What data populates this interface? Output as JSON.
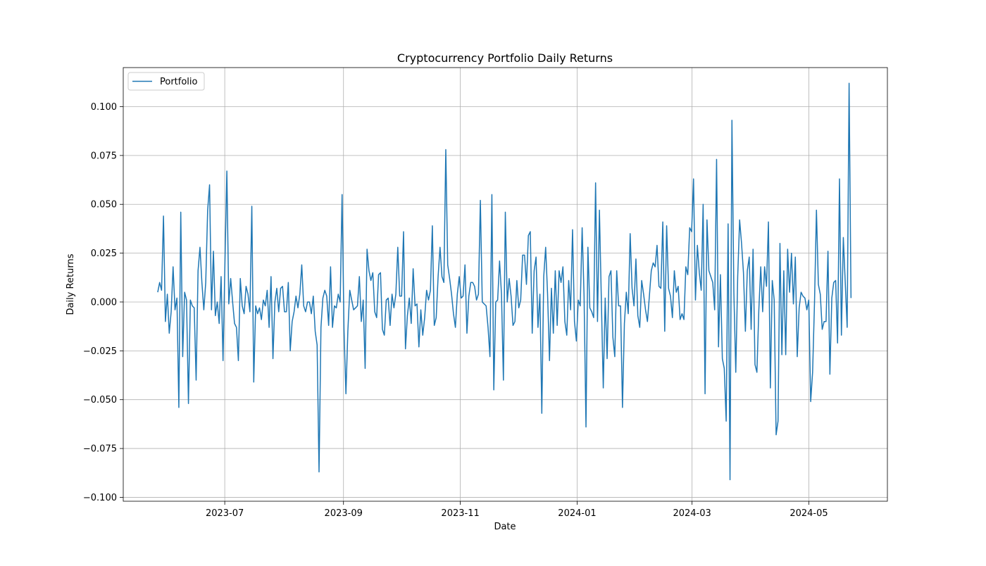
{
  "chart_data": {
    "type": "line",
    "title": "Cryptocurrency Portfolio Daily Returns",
    "xlabel": "Date",
    "ylabel": "Daily Returns",
    "x_start": "2023-05-27",
    "x_end": "2024-05-23",
    "xlim": [
      "2023-05-09",
      "2024-06-11"
    ],
    "ylim": [
      -0.102,
      0.12
    ],
    "x_ticks": [
      {
        "date": "2023-07-01",
        "label": "2023-07"
      },
      {
        "date": "2023-09-01",
        "label": "2023-09"
      },
      {
        "date": "2023-11-01",
        "label": "2023-11"
      },
      {
        "date": "2024-01-01",
        "label": "2024-01"
      },
      {
        "date": "2024-03-01",
        "label": "2024-03"
      },
      {
        "date": "2024-05-01",
        "label": "2024-05"
      }
    ],
    "y_ticks": [
      {
        "value": -0.1,
        "label": "−0.100"
      },
      {
        "value": -0.075,
        "label": "−0.075"
      },
      {
        "value": -0.05,
        "label": "−0.050"
      },
      {
        "value": -0.025,
        "label": "−0.025"
      },
      {
        "value": 0.0,
        "label": "0.000"
      },
      {
        "value": 0.025,
        "label": "0.025"
      },
      {
        "value": 0.05,
        "label": "0.050"
      },
      {
        "value": 0.075,
        "label": "0.075"
      },
      {
        "value": 0.1,
        "label": "0.100"
      }
    ],
    "grid": true,
    "legend_position": "top-left",
    "series": [
      {
        "name": "Portfolio",
        "color": "#1f77b4",
        "values": [
          0.005,
          0.01,
          0.006,
          0.044,
          -0.01,
          0.004,
          -0.016,
          -0.005,
          0.018,
          -0.004,
          0.002,
          -0.054,
          0.046,
          -0.028,
          0.005,
          0.001,
          -0.052,
          0.001,
          -0.002,
          -0.003,
          -0.04,
          0.016,
          0.028,
          0.01,
          -0.004,
          0.01,
          0.047,
          0.06,
          -0.004,
          0.026,
          -0.007,
          0.0,
          -0.011,
          0.013,
          -0.03,
          0.02,
          0.067,
          -0.001,
          0.012,
          0.0,
          -0.011,
          -0.013,
          -0.03,
          0.012,
          -0.002,
          -0.006,
          0.008,
          0.004,
          -0.005,
          0.049,
          -0.041,
          -0.002,
          -0.006,
          -0.003,
          -0.009,
          0.001,
          -0.002,
          0.006,
          -0.013,
          0.013,
          -0.029,
          0.0,
          0.007,
          -0.005,
          0.007,
          0.008,
          -0.005,
          -0.005,
          0.01,
          -0.025,
          -0.01,
          -0.005,
          0.003,
          -0.003,
          0.004,
          0.019,
          -0.002,
          -0.005,
          0.0,
          0.0,
          -0.006,
          0.003,
          -0.015,
          -0.022,
          -0.087,
          -0.013,
          0.002,
          0.006,
          0.003,
          -0.012,
          0.018,
          -0.013,
          -0.002,
          -0.003,
          0.004,
          0.0,
          0.055,
          -0.014,
          -0.047,
          -0.015,
          0.006,
          0.001,
          -0.004,
          -0.003,
          -0.002,
          0.013,
          -0.01,
          0.001,
          -0.034,
          0.027,
          0.016,
          0.011,
          0.015,
          -0.005,
          -0.008,
          0.014,
          0.015,
          -0.014,
          -0.017,
          0.001,
          0.002,
          -0.012,
          0.004,
          -0.003,
          0.004,
          0.028,
          0.003,
          0.003,
          0.036,
          -0.024,
          -0.007,
          0.002,
          -0.011,
          0.017,
          -0.002,
          -0.001,
          -0.023,
          -0.004,
          -0.017,
          -0.008,
          0.006,
          0.001,
          0.006,
          0.039,
          -0.012,
          -0.008,
          0.013,
          0.028,
          0.013,
          0.01,
          0.078,
          0.019,
          0.012,
          0.004,
          -0.006,
          -0.013,
          0.004,
          0.013,
          0.002,
          0.003,
          0.019,
          -0.016,
          0.003,
          0.01,
          0.01,
          0.008,
          0.001,
          0.004,
          0.052,
          0.0,
          -0.001,
          -0.002,
          -0.013,
          -0.028,
          0.055,
          -0.045,
          0.0,
          0.001,
          0.021,
          0.004,
          -0.04,
          0.046,
          0.0,
          0.012,
          0.003,
          -0.012,
          -0.01,
          0.011,
          -0.003,
          0.001,
          0.024,
          0.024,
          0.009,
          0.034,
          0.036,
          -0.016,
          0.016,
          0.023,
          -0.013,
          0.004,
          -0.057,
          0.013,
          0.028,
          0.004,
          -0.03,
          0.007,
          -0.016,
          0.016,
          -0.012,
          0.016,
          0.01,
          0.018,
          -0.01,
          -0.017,
          0.011,
          -0.004,
          0.037,
          -0.01,
          -0.02,
          0.001,
          -0.002,
          0.038,
          0.003,
          -0.064,
          0.028,
          -0.003,
          -0.005,
          -0.008,
          0.061,
          -0.01,
          0.047,
          0.001,
          -0.044,
          0.002,
          -0.029,
          0.013,
          0.016,
          -0.018,
          -0.028,
          0.016,
          -0.002,
          -0.002,
          -0.054,
          -0.011,
          0.005,
          -0.006,
          0.035,
          0.007,
          -0.002,
          0.022,
          -0.007,
          -0.013,
          0.011,
          0.004,
          -0.004,
          -0.01,
          0.003,
          0.016,
          0.02,
          0.018,
          0.029,
          0.008,
          0.007,
          0.041,
          -0.015,
          0.039,
          0.007,
          0.003,
          -0.008,
          0.016,
          0.005,
          0.008,
          -0.009,
          -0.006,
          -0.009,
          0.018,
          0.014,
          0.038,
          0.036,
          0.063,
          0.001,
          0.029,
          0.015,
          0.006,
          0.05,
          -0.047,
          0.042,
          0.016,
          0.013,
          0.01,
          -0.004,
          0.073,
          -0.023,
          0.014,
          -0.029,
          -0.034,
          -0.061,
          0.04,
          -0.091,
          0.093,
          0.005,
          -0.036,
          0.013,
          0.042,
          0.03,
          0.015,
          -0.015,
          0.016,
          0.023,
          -0.014,
          0.027,
          -0.032,
          -0.036,
          -0.004,
          0.018,
          -0.005,
          0.018,
          0.008,
          0.041,
          -0.044,
          0.011,
          0.001,
          -0.068,
          -0.061,
          0.03,
          -0.027,
          0.016,
          -0.027,
          0.027,
          0.005,
          0.025,
          -0.001,
          0.023,
          -0.028,
          -0.003,
          0.005,
          0.003,
          0.002,
          -0.004,
          0.001,
          -0.051,
          -0.036,
          0.0,
          0.047,
          0.009,
          0.004,
          -0.014,
          -0.01,
          -0.01,
          0.026,
          -0.037,
          0.002,
          0.01,
          0.011,
          -0.021,
          0.063,
          -0.017,
          0.033,
          0.01,
          -0.013,
          0.112,
          0.002
        ]
      }
    ]
  }
}
